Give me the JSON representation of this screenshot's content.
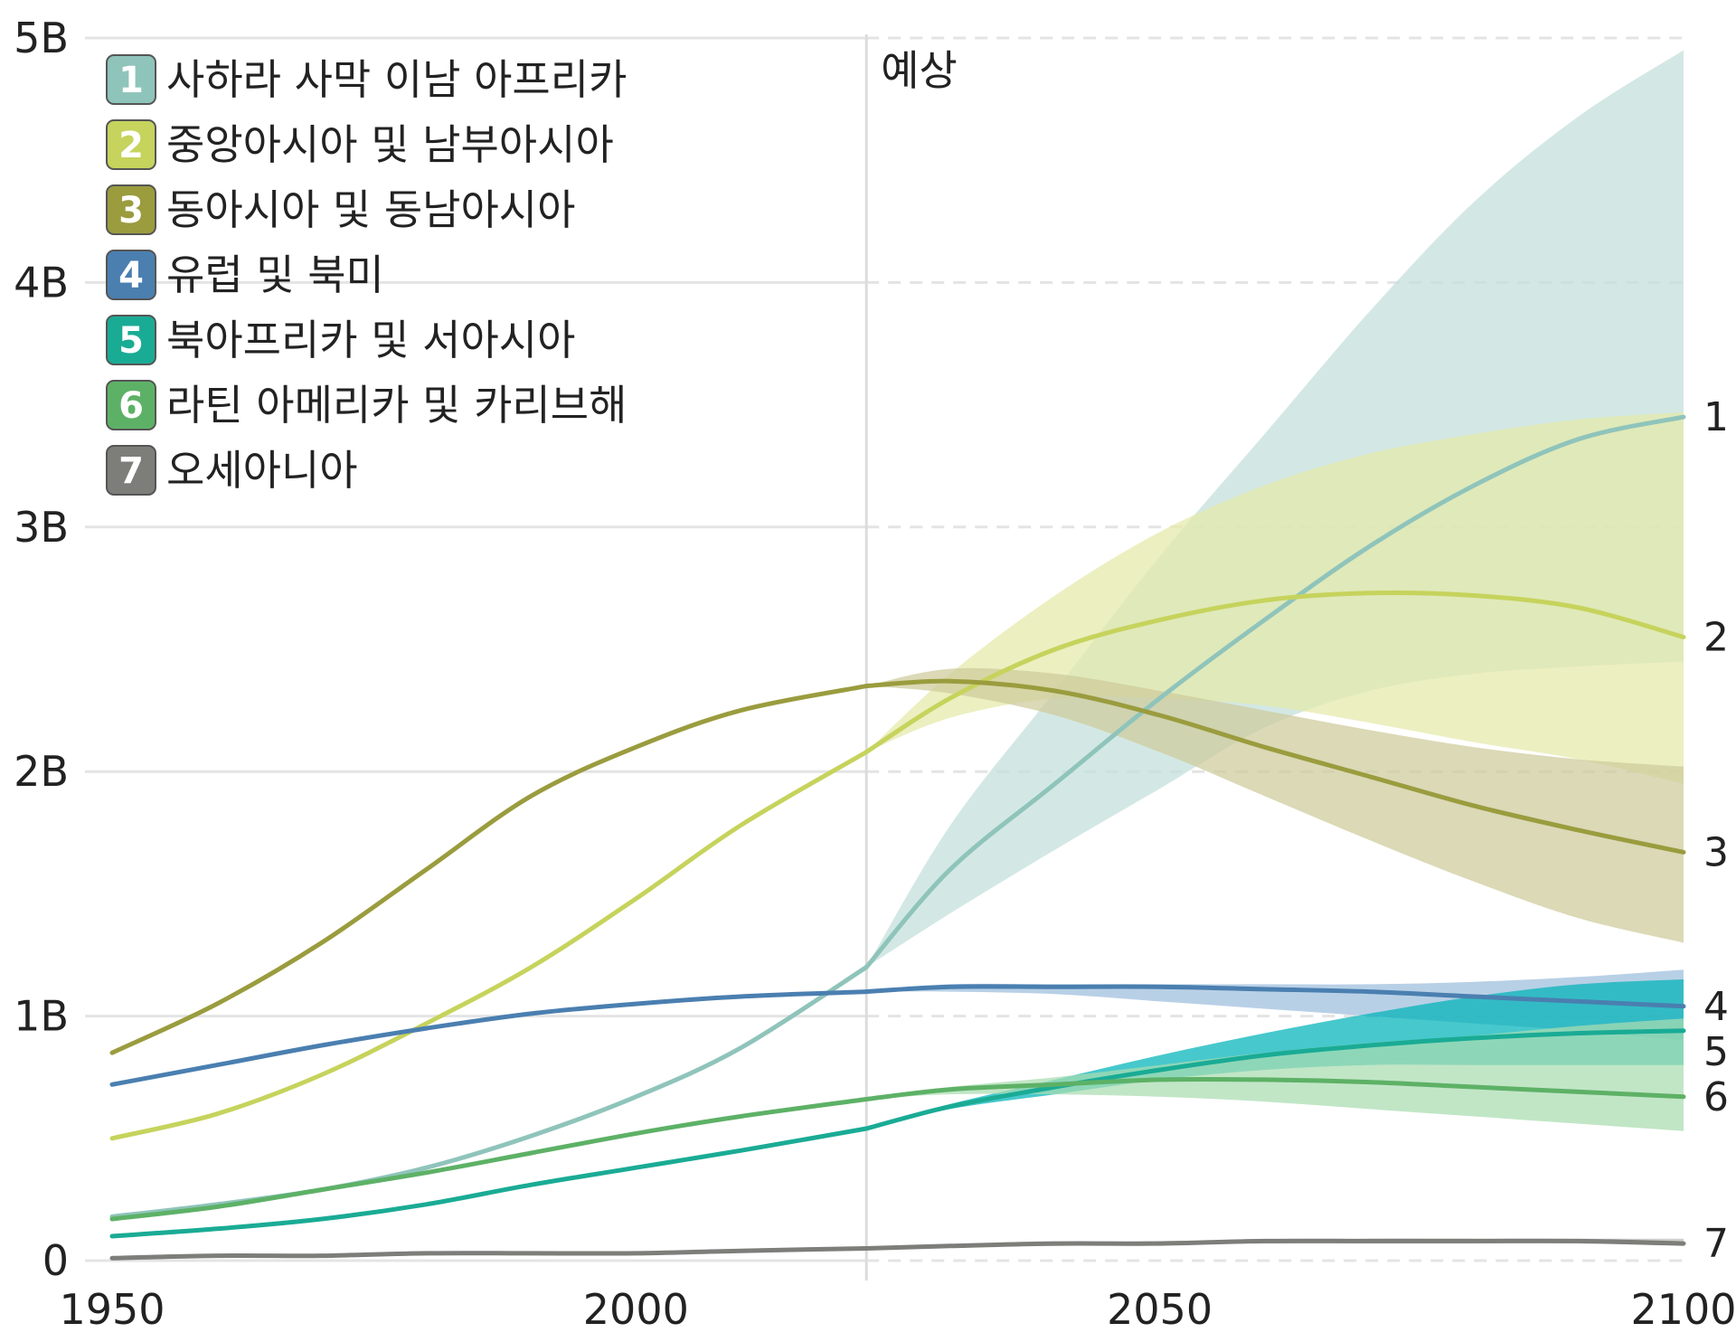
{
  "chart_data": {
    "type": "line",
    "title": "",
    "xlabel": "",
    "ylabel": "",
    "xlim": [
      1950,
      2100
    ],
    "ylim": [
      0,
      5
    ],
    "x_ticks": [
      "1950",
      "2000",
      "2050",
      "2100"
    ],
    "y_ticks": [
      "0",
      "1B",
      "2B",
      "3B",
      "4B",
      "5B"
    ],
    "grid": true,
    "projection_start": 2022,
    "projection_label": "예상",
    "legend_position": "top-left",
    "series": [
      {
        "id": "1",
        "name": "사하라 사막 이남 아프리카",
        "color": "#8fc4bb",
        "band_color": "#c2dfda",
        "x": [
          1950,
          1960,
          1970,
          1980,
          1990,
          2000,
          2010,
          2022
        ],
        "values": [
          0.18,
          0.23,
          0.29,
          0.38,
          0.51,
          0.67,
          0.87,
          1.2
        ],
        "proj_x": [
          2022,
          2030,
          2040,
          2050,
          2060,
          2070,
          2080,
          2090,
          2100
        ],
        "proj_values": [
          1.2,
          1.6,
          1.95,
          2.3,
          2.62,
          2.92,
          3.17,
          3.36,
          3.45
        ],
        "proj_low": [
          1.2,
          1.42,
          1.68,
          1.93,
          2.18,
          2.33,
          2.4,
          2.43,
          2.45
        ],
        "proj_high": [
          1.2,
          1.78,
          2.33,
          2.88,
          3.38,
          3.88,
          4.33,
          4.68,
          4.95
        ]
      },
      {
        "id": "2",
        "name": "중앙아시아 및 남부아시아",
        "color": "#c6d35c",
        "band_color": "#e4e9a8",
        "x": [
          1950,
          1960,
          1970,
          1980,
          1990,
          2000,
          2010,
          2022
        ],
        "values": [
          0.5,
          0.6,
          0.76,
          0.97,
          1.2,
          1.48,
          1.78,
          2.08
        ],
        "proj_x": [
          2022,
          2030,
          2040,
          2050,
          2060,
          2070,
          2080,
          2090,
          2100
        ],
        "proj_values": [
          2.08,
          2.3,
          2.5,
          2.62,
          2.7,
          2.73,
          2.72,
          2.67,
          2.55
        ],
        "proj_low": [
          2.08,
          2.22,
          2.3,
          2.3,
          2.27,
          2.2,
          2.12,
          2.05,
          1.95
        ],
        "proj_high": [
          2.08,
          2.4,
          2.72,
          2.98,
          3.17,
          3.3,
          3.38,
          3.44,
          3.47
        ]
      },
      {
        "id": "3",
        "name": "동아시아 및 동남아시아",
        "color": "#9a9c3e",
        "band_color": "#cdcb9a",
        "x": [
          1950,
          1960,
          1970,
          1980,
          1990,
          2000,
          2010,
          2022
        ],
        "values": [
          0.85,
          1.05,
          1.3,
          1.6,
          1.9,
          2.1,
          2.25,
          2.35
        ],
        "proj_x": [
          2022,
          2030,
          2040,
          2050,
          2060,
          2070,
          2080,
          2090,
          2100
        ],
        "proj_values": [
          2.35,
          2.37,
          2.33,
          2.23,
          2.1,
          1.98,
          1.86,
          1.76,
          1.67
        ],
        "proj_low": [
          2.35,
          2.32,
          2.23,
          2.08,
          1.9,
          1.72,
          1.55,
          1.4,
          1.3
        ],
        "proj_high": [
          2.35,
          2.42,
          2.4,
          2.33,
          2.25,
          2.17,
          2.1,
          2.05,
          2.02
        ]
      },
      {
        "id": "4",
        "name": "유럽 및 북미",
        "color": "#4a7fb0",
        "band_color": "#9cbedc",
        "x": [
          1950,
          1960,
          1970,
          1980,
          1990,
          2000,
          2010,
          2022
        ],
        "values": [
          0.72,
          0.8,
          0.88,
          0.95,
          1.01,
          1.05,
          1.08,
          1.1
        ],
        "proj_x": [
          2022,
          2030,
          2040,
          2050,
          2060,
          2070,
          2080,
          2090,
          2100
        ],
        "proj_values": [
          1.1,
          1.12,
          1.12,
          1.12,
          1.11,
          1.1,
          1.08,
          1.06,
          1.04
        ],
        "proj_low": [
          1.1,
          1.1,
          1.09,
          1.06,
          1.03,
          1.0,
          0.97,
          0.94,
          0.9
        ],
        "proj_high": [
          1.1,
          1.13,
          1.13,
          1.13,
          1.13,
          1.13,
          1.14,
          1.16,
          1.19
        ]
      },
      {
        "id": "5",
        "name": "북아프리카 및 서아시아",
        "color": "#1aab95",
        "band_color": "#00b3b8",
        "x": [
          1950,
          1960,
          1970,
          1980,
          1990,
          2000,
          2010,
          2022
        ],
        "values": [
          0.1,
          0.13,
          0.17,
          0.23,
          0.31,
          0.38,
          0.45,
          0.54
        ],
        "proj_x": [
          2022,
          2030,
          2040,
          2050,
          2060,
          2070,
          2080,
          2090,
          2100
        ],
        "proj_values": [
          0.54,
          0.63,
          0.71,
          0.78,
          0.84,
          0.88,
          0.91,
          0.93,
          0.94
        ],
        "proj_low": [
          0.54,
          0.62,
          0.68,
          0.74,
          0.78,
          0.8,
          0.8,
          0.8,
          0.8
        ],
        "proj_high": [
          0.54,
          0.64,
          0.74,
          0.84,
          0.93,
          1.01,
          1.08,
          1.13,
          1.15
        ]
      },
      {
        "id": "6",
        "name": "라틴 아메리카 및 카리브해",
        "color": "#5db166",
        "band_color": "#a9dcb0",
        "x": [
          1950,
          1960,
          1970,
          1980,
          1990,
          2000,
          2010,
          2022
        ],
        "values": [
          0.17,
          0.22,
          0.29,
          0.36,
          0.44,
          0.52,
          0.59,
          0.66
        ],
        "proj_x": [
          2022,
          2030,
          2040,
          2050,
          2060,
          2070,
          2080,
          2090,
          2100
        ],
        "proj_values": [
          0.66,
          0.7,
          0.72,
          0.74,
          0.74,
          0.73,
          0.71,
          0.69,
          0.67
        ],
        "proj_low": [
          0.66,
          0.68,
          0.68,
          0.67,
          0.65,
          0.62,
          0.59,
          0.56,
          0.53
        ],
        "proj_high": [
          0.66,
          0.71,
          0.75,
          0.8,
          0.85,
          0.89,
          0.92,
          0.96,
          0.99
        ]
      },
      {
        "id": "7",
        "name": "오세아니아",
        "color": "#7d7d7a",
        "band_color": "#bdbdbb",
        "x": [
          1950,
          1960,
          1970,
          1980,
          1990,
          2000,
          2010,
          2022
        ],
        "values": [
          0.01,
          0.02,
          0.02,
          0.03,
          0.03,
          0.03,
          0.04,
          0.05
        ],
        "proj_x": [
          2022,
          2030,
          2040,
          2050,
          2060,
          2070,
          2080,
          2090,
          2100
        ],
        "proj_values": [
          0.05,
          0.06,
          0.07,
          0.07,
          0.08,
          0.08,
          0.08,
          0.08,
          0.07
        ],
        "proj_low": [
          0.05,
          0.06,
          0.06,
          0.07,
          0.07,
          0.07,
          0.07,
          0.07,
          0.06
        ],
        "proj_high": [
          0.05,
          0.06,
          0.07,
          0.08,
          0.08,
          0.09,
          0.09,
          0.09,
          0.09
        ]
      }
    ]
  }
}
